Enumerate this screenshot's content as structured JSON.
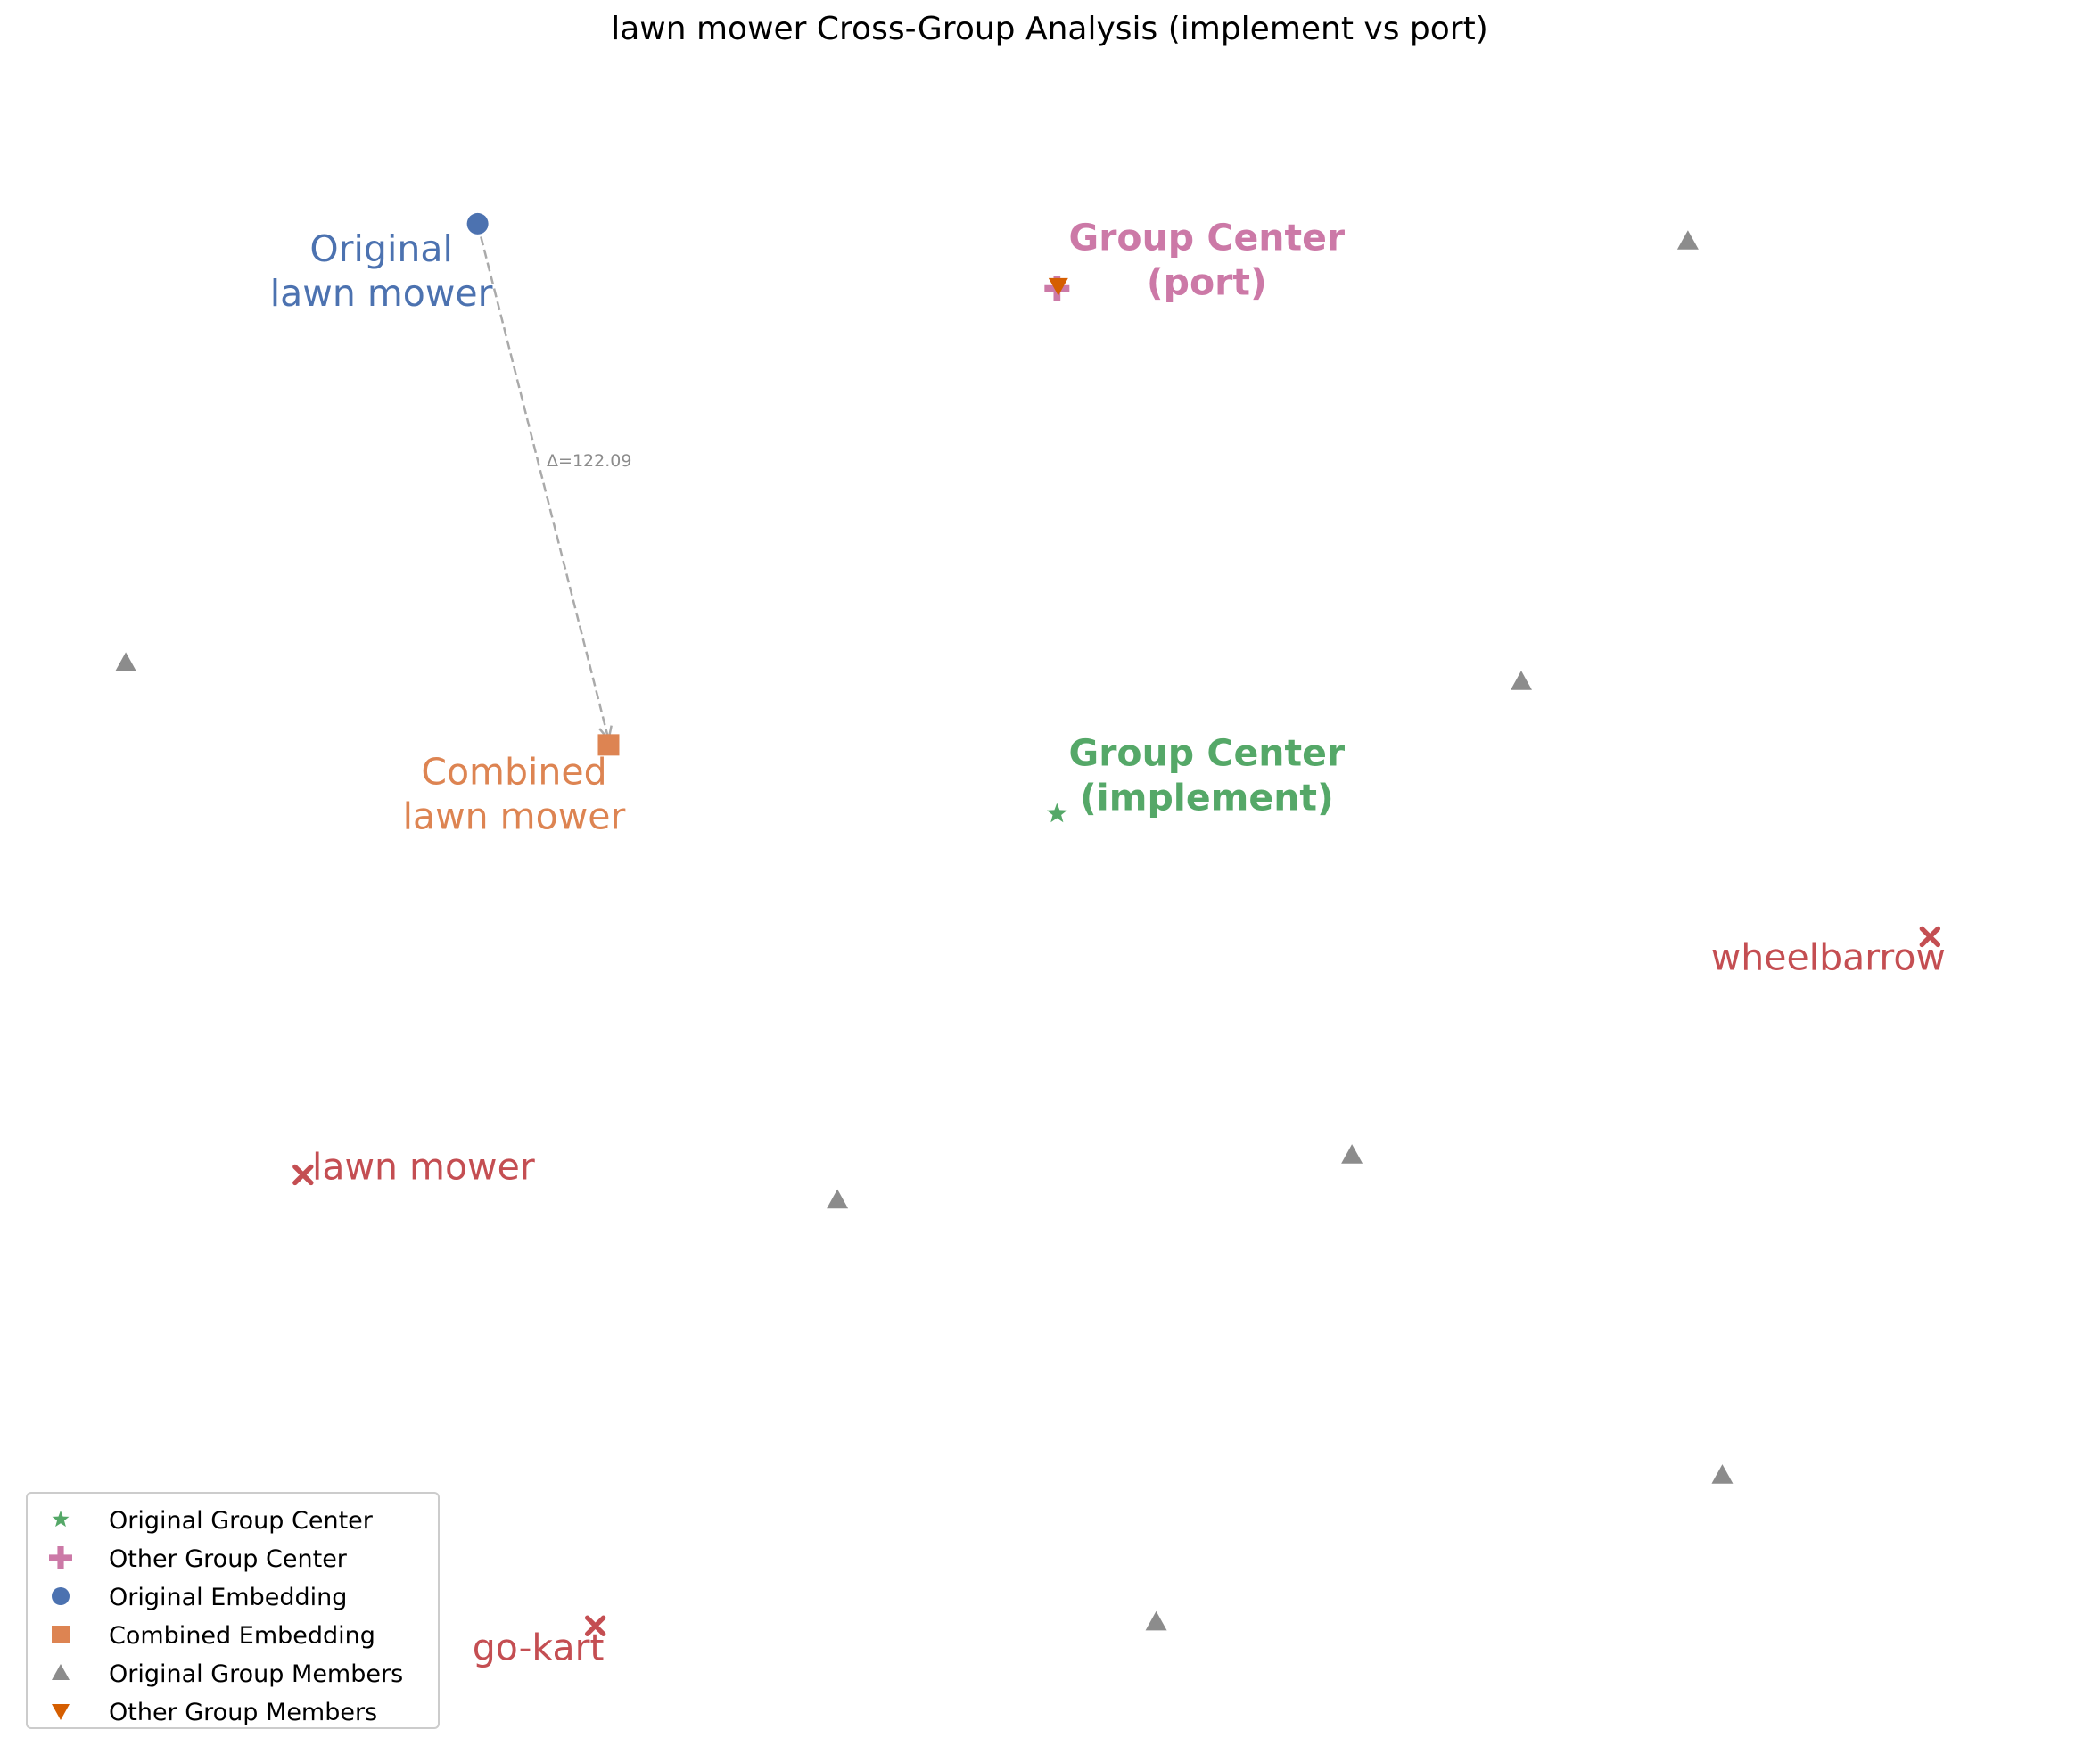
{
  "chart_data": {
    "type": "scatter",
    "title": "lawn mower Cross-Group Analysis (implement vs port)",
    "xlabel": "",
    "ylabel": "",
    "xlim": [
      0,
      1500
    ],
    "ylim": [
      0,
      1200
    ],
    "axes_visible": false,
    "grid": false,
    "legend_position": "lower-left",
    "colors": {
      "original_center": "#55a868",
      "other_center": "#cc79a7",
      "original_embedding": "#4c72b0",
      "combined_embedding": "#dd8452",
      "original_members": "#8c8c8c",
      "other_members": "#d55e00",
      "neighbors": "#c44e52",
      "arrow": "#aaaaaa"
    },
    "points": {
      "original_group_center": {
        "x": 760,
        "y": 659,
        "label": [
          "Group Center",
          "(implement)"
        ]
      },
      "other_group_center": {
        "x": 760,
        "y": 1056,
        "label": [
          "Group Center",
          "(port)"
        ]
      },
      "original_embedding": {
        "x": 322,
        "y": 1105,
        "label": [
          "Original",
          "lawn mower"
        ]
      },
      "combined_embedding": {
        "x": 421,
        "y": 711,
        "label": [
          "Combined",
          "lawn mower"
        ]
      },
      "original_group_members": [
        {
          "x": 56,
          "y": 773
        },
        {
          "x": 1111,
          "y": 759
        },
        {
          "x": 1237,
          "y": 1092
        },
        {
          "x": 983,
          "y": 401
        },
        {
          "x": 594,
          "y": 367
        },
        {
          "x": 1263,
          "y": 159
        },
        {
          "x": 835,
          "y": 48
        }
      ],
      "other_group_members": [
        {
          "x": 761,
          "y": 1058
        }
      ],
      "neighbors": [
        {
          "x": 1420,
          "y": 566,
          "label": "wheelbarrow"
        },
        {
          "x": 190,
          "y": 386,
          "label": "lawn mower"
        },
        {
          "x": 411,
          "y": 45,
          "label": "go-kart"
        }
      ]
    },
    "arrow": {
      "from": "original_embedding",
      "to": "combined_embedding",
      "label": "Δ=122.09"
    },
    "legend": [
      {
        "label": "Original Group Center",
        "marker": "star",
        "color": "#55a868"
      },
      {
        "label": "Other Group Center",
        "marker": "plus",
        "color": "#cc79a7"
      },
      {
        "label": "Original Embedding",
        "marker": "circle",
        "color": "#4c72b0"
      },
      {
        "label": "Combined Embedding",
        "marker": "square",
        "color": "#dd8452"
      },
      {
        "label": "Original Group Members",
        "marker": "triangle-up",
        "color": "#8c8c8c"
      },
      {
        "label": "Other Group Members",
        "marker": "triangle-down",
        "color": "#d55e00"
      }
    ]
  }
}
